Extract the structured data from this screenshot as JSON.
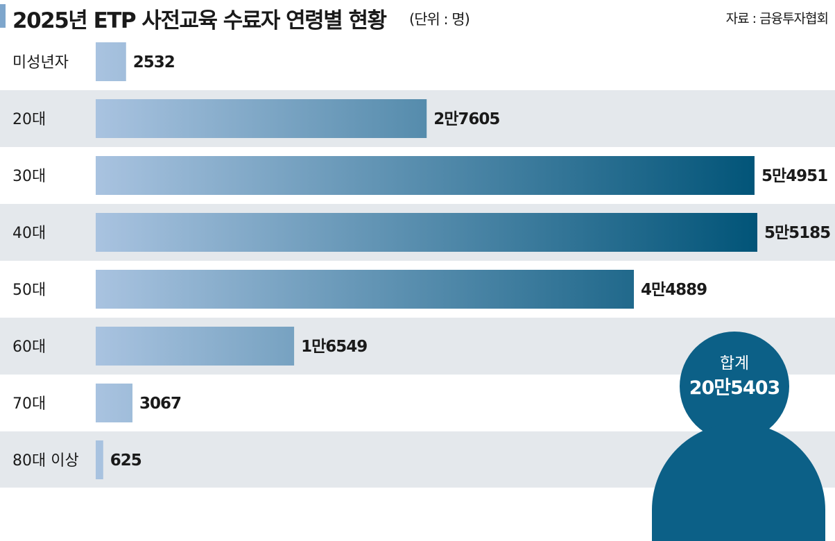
{
  "header": {
    "title": "2025년 ETP 사전교육 수료자 연령별 현황",
    "unit": "(단위 : 명)",
    "source": "자료 : 금융투자협회"
  },
  "colors": {
    "accent": "#7ea6cc",
    "bar_light": "#a9c3e0",
    "bar_dark": "#015478",
    "row_shade": "#e4e8ec",
    "total": "#0c6087"
  },
  "chart_data": {
    "type": "bar",
    "orientation": "horizontal",
    "title": "2025년 ETP 사전교육 수료자 연령별 현황",
    "xlabel": "",
    "ylabel": "",
    "unit": "명",
    "categories": [
      "미성년자",
      "20대",
      "30대",
      "40대",
      "50대",
      "60대",
      "70대",
      "80대 이상"
    ],
    "values": [
      2532,
      27605,
      54951,
      55185,
      44889,
      16549,
      3067,
      625
    ],
    "value_labels": [
      "2532",
      "2만7605",
      "5만4951",
      "5만5185",
      "4만4889",
      "1만6549",
      "3067",
      "625"
    ],
    "xlim": [
      0,
      55185
    ],
    "grid": false,
    "legend": "none",
    "total": {
      "label": "합계",
      "value": 205403,
      "value_label": "20만5403"
    }
  }
}
